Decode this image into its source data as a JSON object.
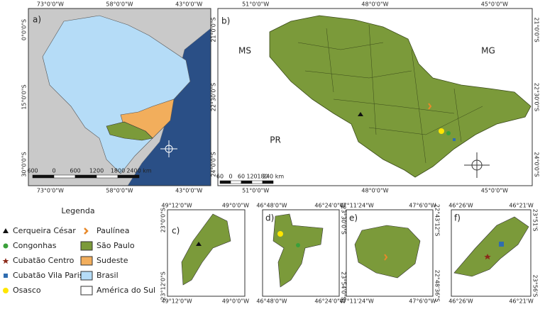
{
  "panels": [
    {
      "label": "a)",
      "top": [
        "73°0'0\"W",
        "58°0'0\"W",
        "43°0'0\"W"
      ],
      "bottom": [
        "73°0'0\"W",
        "58°0'0\"W",
        "43°0'0\"W"
      ],
      "left": [
        "0°0'0\"S",
        "15°0'0\"S",
        "30°0'0\"S"
      ],
      "scale": [
        "600",
        "0",
        "600",
        "1200",
        "1800",
        "2400 km"
      ]
    },
    {
      "label": "b)",
      "top": [
        "51°0'0\"W",
        "48°0'0\"W",
        "45°0'0\"W"
      ],
      "bottom": [
        "51°0'0\"W",
        "48°0'0\"W",
        "45°0'0\"W"
      ],
      "left": [
        "21°0'0\"S",
        "22°30'0\"S",
        "24°0'0\"S"
      ],
      "right": [
        "21°0'0\"S",
        "22°30'0\"S",
        "24°0'0\"S"
      ],
      "scale": [
        "60",
        "0",
        "60",
        "120",
        "180",
        "240 km"
      ]
    },
    {
      "label": "c)",
      "top": [
        "49°12'0\"W",
        "49°0'0\"W"
      ],
      "bottom": [
        "49°12'0\"W",
        "49°0'0\"W"
      ],
      "left": [
        "23°0'0\"S",
        "23°12'0\"S"
      ]
    },
    {
      "label": "d)",
      "top": [
        "46°48'0\"W",
        "46°24'0\"W"
      ],
      "bottom": [
        "46°48'0\"W",
        "46°24'0\"W"
      ],
      "right": [
        "23°30'0\"S",
        "23°54'0\"S"
      ]
    },
    {
      "label": "e)",
      "top": [
        "47°11'24\"W",
        "47°6'0\"W"
      ],
      "bottom": [
        "47°11'24\"W",
        "47°6'0\"W"
      ],
      "right": [
        "22°43'12\"S",
        "22°48'36\"S"
      ]
    },
    {
      "label": "f)",
      "top": [
        "46°26'W",
        "46°21'W"
      ],
      "bottom": [
        "46°26'W",
        "46°21'W"
      ],
      "right": [
        "23°51'S",
        "23°56'S"
      ]
    }
  ],
  "states": [
    "MS",
    "MG",
    "PR"
  ],
  "legend": {
    "title": "Legenda",
    "items": [
      "Cerqueira César",
      "Congonhas",
      "Cubatão Centro",
      "Cubatão Vila Parisi",
      "Osasco",
      "Paulínea",
      "São Paulo",
      "Sudeste",
      "Brasil",
      "América do Sul"
    ]
  }
}
